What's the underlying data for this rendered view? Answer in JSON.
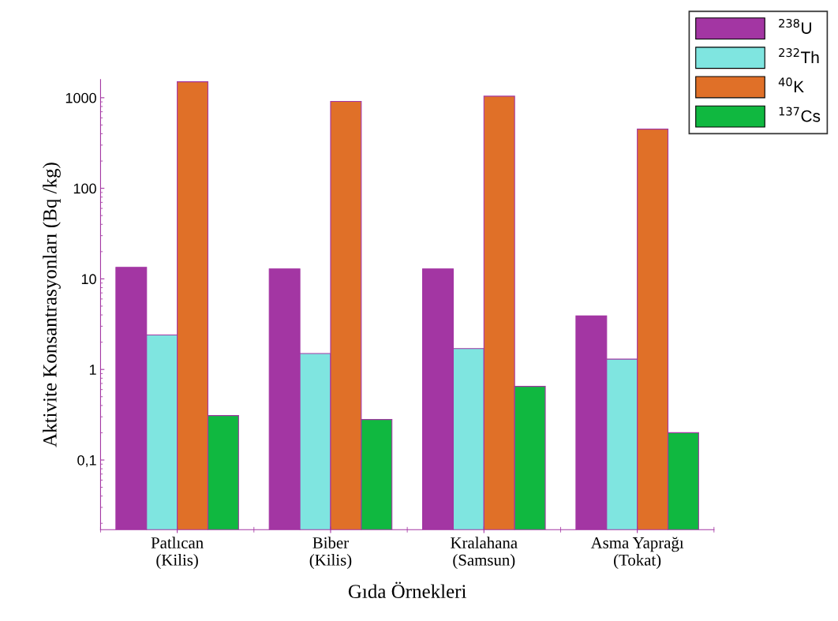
{
  "chart_data": {
    "type": "bar",
    "xlabel": "Gıda Örnekleri",
    "ylabel": "Aktivite Konsantrasyonları (Bq /kg)",
    "categories": [
      "Patlıcan\n(Kilis)",
      "Biber\n(Kilis)",
      "Kralahana\n(Samsun)",
      "Asma Yaprağı\n(Tokat)"
    ],
    "series": [
      {
        "name": "$^{238}$U",
        "color": "#a336a3",
        "values": [
          13.4,
          12.9,
          12.9,
          3.9
        ]
      },
      {
        "name": "$^{232}$Th",
        "color": "#7fe5e0",
        "values": [
          2.4,
          1.5,
          1.7,
          1.3
        ]
      },
      {
        "name": "$^{40}$K",
        "color": "#e07028",
        "values": [
          1500,
          910,
          1040,
          450
        ]
      },
      {
        "name": "$^{137}$Cs",
        "color": "#10b840",
        "values": [
          0.31,
          0.28,
          0.65,
          0.2
        ]
      }
    ],
    "log": "y",
    "ylim": [
      0.017,
      1590
    ],
    "yticks": [
      {
        "value": 0.1,
        "label": "0,1"
      },
      1,
      10,
      100,
      1000
    ],
    "grid": false,
    "legend": "top right"
  }
}
